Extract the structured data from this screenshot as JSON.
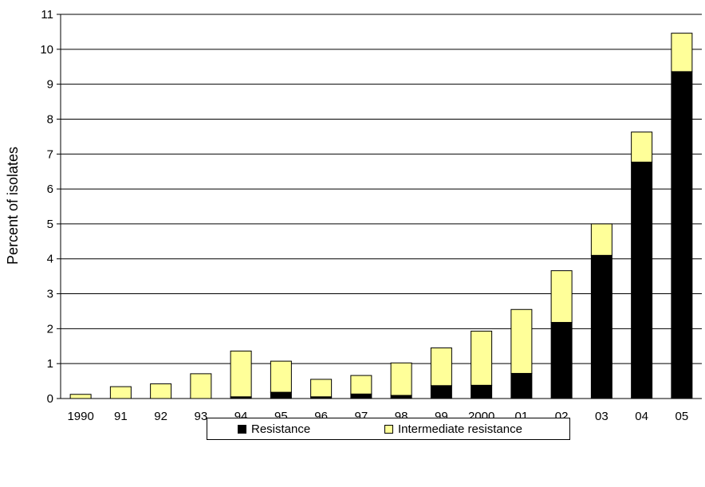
{
  "chart_data": {
    "type": "bar",
    "stacked": true,
    "categories": [
      "1990",
      "91",
      "92",
      "93",
      "94",
      "95",
      "96",
      "97",
      "98",
      "99",
      "2000",
      "01",
      "02",
      "03",
      "04",
      "05"
    ],
    "series": [
      {
        "name": "Resistance",
        "color": "#000000",
        "values": [
          0.0,
          0.0,
          0.0,
          0.0,
          0.05,
          0.18,
          0.05,
          0.13,
          0.09,
          0.37,
          0.38,
          0.72,
          2.18,
          4.1,
          6.77,
          9.36
        ]
      },
      {
        "name": "Intermediate resistance",
        "color": "#FFFF99",
        "values": [
          0.12,
          0.34,
          0.42,
          0.71,
          1.31,
          0.89,
          0.5,
          0.53,
          0.93,
          1.08,
          1.55,
          1.83,
          1.48,
          0.9,
          0.86,
          1.1
        ]
      }
    ],
    "title": "",
    "xlabel": "",
    "ylabel": "Percent of isolates",
    "ylim": [
      0,
      11
    ],
    "yticks": [
      "0",
      "1",
      "2",
      "3",
      "4",
      "5",
      "6",
      "7",
      "8",
      "9",
      "10",
      "11"
    ],
    "grid": true,
    "legend_position": "bottom"
  }
}
